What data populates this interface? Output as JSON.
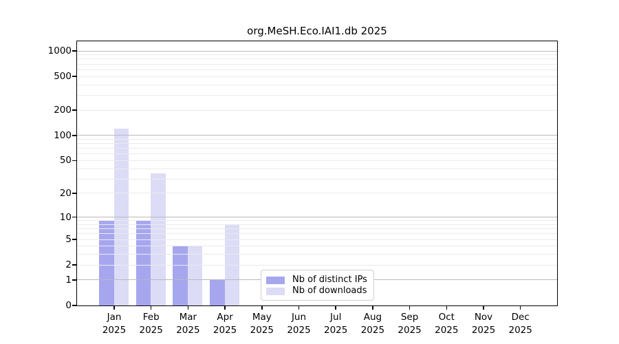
{
  "chart_data": {
    "type": "bar",
    "title": "org.MeSH.Eco.IAI1.db 2025",
    "categories": [
      "Jan",
      "Feb",
      "Mar",
      "Apr",
      "May",
      "Jun",
      "Jul",
      "Aug",
      "Sep",
      "Oct",
      "Nov",
      "Dec"
    ],
    "year_label": "2025",
    "series": [
      {
        "key": "distinct-ips",
        "name": "Nb of distinct IPs",
        "color": "#a6a6ef",
        "values": [
          9,
          9,
          4,
          1,
          0,
          0,
          0,
          0,
          0,
          0,
          0,
          0
        ]
      },
      {
        "key": "downloads",
        "name": "Nb of downloads",
        "color": "#dcdcf7",
        "values": [
          120,
          35,
          4,
          8,
          0,
          0,
          0,
          0,
          0,
          0,
          0,
          0
        ]
      }
    ],
    "y_axis": {
      "scale": "log10(1+v)",
      "ticks": [
        0,
        1,
        2,
        5,
        10,
        20,
        50,
        100,
        200,
        500,
        1000
      ],
      "ylim": [
        0,
        1300
      ]
    },
    "grid": {
      "orientation": "horizontal",
      "major_values": [
        1,
        10,
        100,
        1000
      ],
      "minor_values": [
        2,
        3,
        4,
        5,
        6,
        7,
        8,
        9,
        20,
        30,
        40,
        50,
        60,
        70,
        80,
        90,
        200,
        300,
        400,
        500,
        600,
        700,
        800,
        900
      ],
      "major_color": "#b9b9b9",
      "minor_color": "#ebebeb"
    },
    "legend_position": "inside lower-center"
  }
}
